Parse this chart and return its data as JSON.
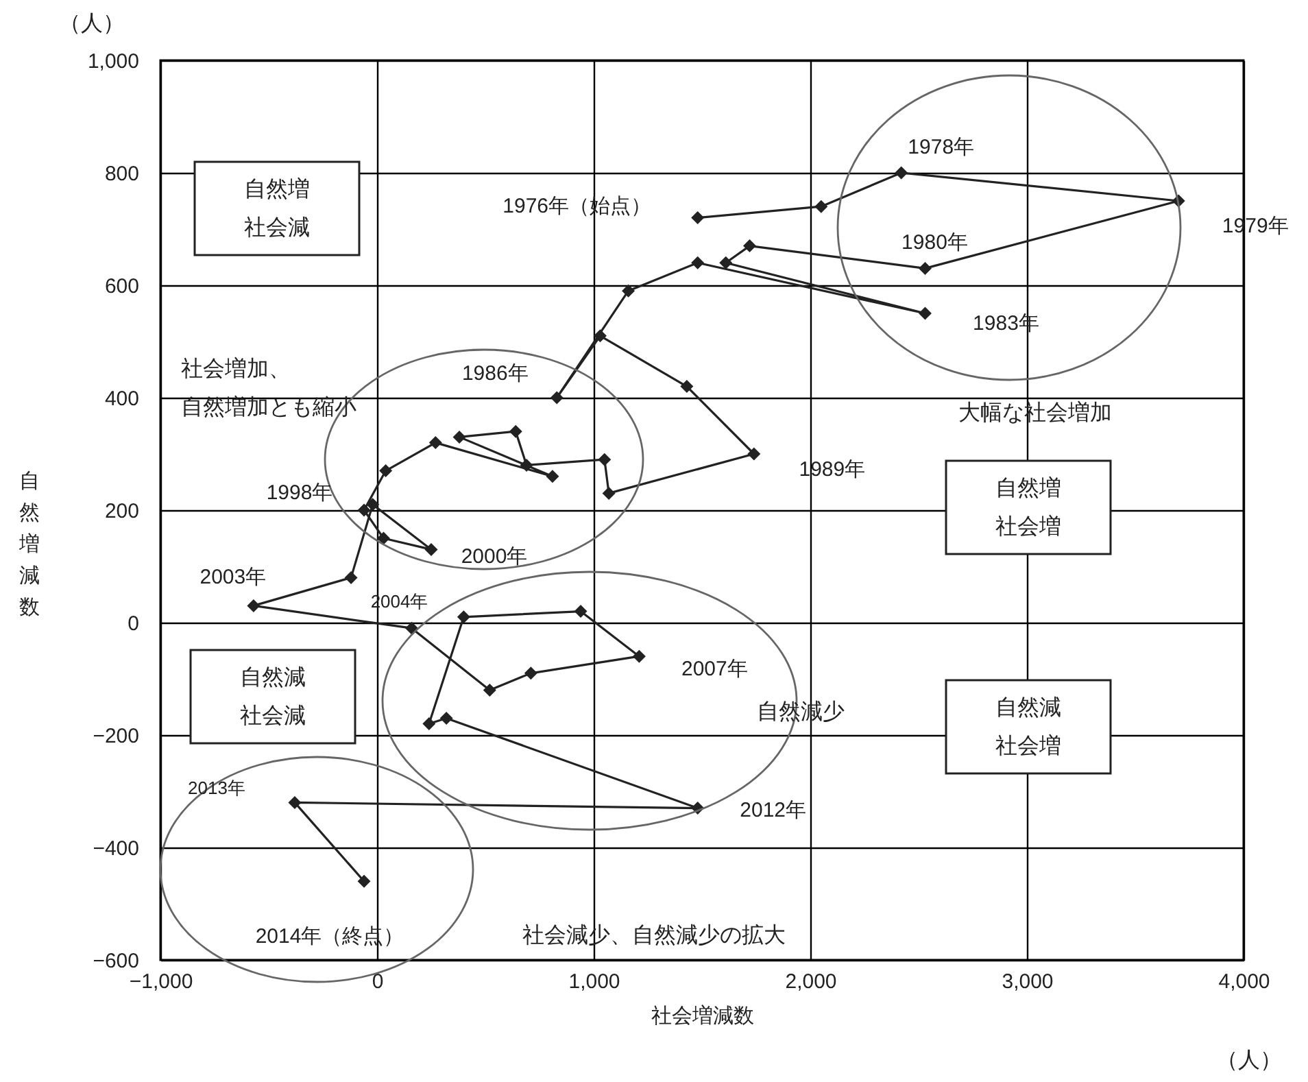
{
  "chart_data": {
    "type": "line",
    "marker": "diamond",
    "line_style": "solid",
    "color": "#222222",
    "grid": true,
    "xlabel": "社会増減数",
    "ylabel": "自然増減数",
    "x": [
      1480,
      2050,
      2420,
      3700,
      2530,
      1720,
      1610,
      2530,
      1480,
      1160,
      830,
      1030,
      1430,
      1740,
      1070,
      1050,
      690,
      640,
      380,
      810,
      270,
      40,
      -60,
      30,
      250,
      -20,
      -120,
      -570,
      160,
      520,
      710,
      1210,
      940,
      400,
      240,
      320,
      1480,
      -380,
      -60
    ],
    "values": [
      720,
      740,
      800,
      750,
      630,
      670,
      640,
      550,
      640,
      590,
      400,
      510,
      420,
      300,
      230,
      290,
      280,
      340,
      330,
      260,
      320,
      270,
      200,
      150,
      130,
      210,
      80,
      30,
      -10,
      -120,
      -90,
      -60,
      20,
      10,
      -180,
      -170,
      -330,
      -320,
      -460
    ],
    "xlim": [
      -1000,
      4000
    ],
    "ylim": [
      -600,
      1000
    ],
    "xticks": [
      {
        "value": -1000,
        "label": "−1,000"
      },
      0,
      {
        "value": 1000,
        "label": "1,000"
      },
      {
        "value": 2000,
        "label": "2,000"
      },
      {
        "value": 3000,
        "label": "3,000"
      },
      {
        "value": 4000,
        "label": "4,000"
      }
    ],
    "yticks": [
      {
        "value": -600,
        "label": "−600"
      },
      {
        "value": -400,
        "label": "−400"
      },
      {
        "value": -200,
        "label": "−200"
      },
      0,
      200,
      400,
      600,
      800,
      {
        "value": 1000,
        "label": "1,000"
      }
    ],
    "annotations": [
      {
        "text": "1976年（始点）",
        "x": 1480,
        "y": 720
      },
      {
        "text": "1978年",
        "x": 2420,
        "y": 800
      },
      {
        "text": "1979年",
        "x": 3700,
        "y": 750
      },
      {
        "text": "1980年",
        "x": 2530,
        "y": 630
      },
      {
        "text": "1983年",
        "x": 2530,
        "y": 550
      },
      {
        "text": "1986年",
        "x": 830,
        "y": 400
      },
      {
        "text": "1989年",
        "x": 1740,
        "y": 300
      },
      {
        "text": "1998年",
        "x": -60,
        "y": 200
      },
      {
        "text": "2000年",
        "x": 250,
        "y": 130
      },
      {
        "text": "2003年",
        "x": -570,
        "y": 30
      },
      {
        "text": "2004年",
        "x": 160,
        "y": -10
      },
      {
        "text": "2007年",
        "x": 1210,
        "y": -60
      },
      {
        "text": "2012年",
        "x": 1480,
        "y": -330
      },
      {
        "text": "2013年",
        "x": -380,
        "y": -320
      },
      {
        "text": "2014年（終点）",
        "x": -60,
        "y": -460
      },
      "（人）",
      "（人）",
      "自然増",
      "社会減",
      "自然増",
      "社会増",
      "自然減",
      "社会減",
      "自然減",
      "社会増",
      "社会増加、",
      "自然増加とも縮小",
      "大幅な社会増加",
      "自然減少",
      "社会減少、自然減少の拡大"
    ]
  }
}
